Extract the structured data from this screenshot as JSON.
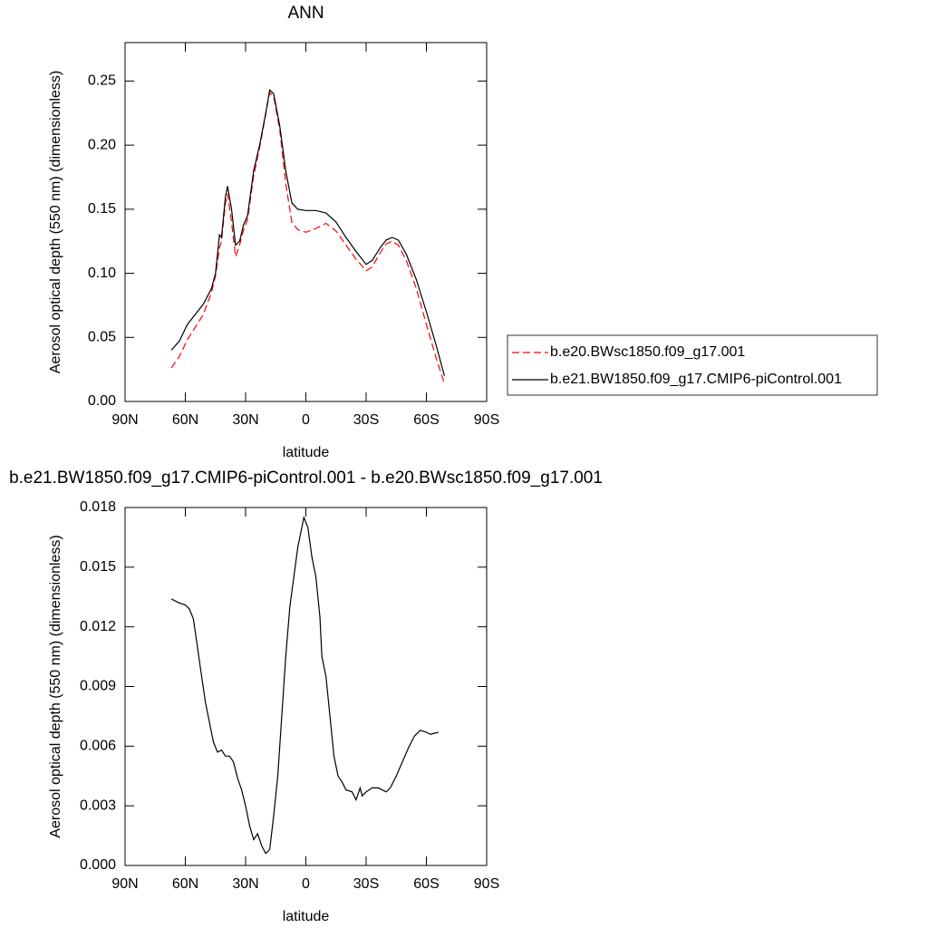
{
  "chart_data": [
    {
      "type": "line",
      "title": "ANN",
      "xlabel": "latitude",
      "ylabel": "Aerosol optical depth (550 nm) (dimensionless)",
      "xlim": [
        90,
        -90
      ],
      "xticks": [
        {
          "value": 90,
          "label": "90N"
        },
        {
          "value": 60,
          "label": "60N"
        },
        {
          "value": 30,
          "label": "30N"
        },
        0,
        {
          "value": -30,
          "label": "30S"
        },
        {
          "value": -60,
          "label": "60S"
        },
        {
          "value": -90,
          "label": "90S"
        }
      ],
      "ylim": [
        0,
        0.28
      ],
      "yticks": [
        {
          "value": 0,
          "label": "0.00"
        },
        0.05,
        {
          "value": 0.1,
          "label": "0.10"
        },
        0.15,
        {
          "value": 0.2,
          "label": "0.20"
        },
        0.25
      ],
      "legend": "outside-right",
      "x": [
        67,
        63,
        59,
        55,
        51,
        47,
        45,
        43,
        42,
        40,
        39,
        37,
        35,
        33,
        31,
        29,
        26,
        23,
        20,
        18,
        16,
        13,
        10,
        7,
        4,
        0,
        -5,
        -10,
        -15,
        -20,
        -25,
        -30,
        -33,
        -37,
        -40,
        -43,
        -46,
        -50,
        -55,
        -60,
        -65,
        -69
      ],
      "series": [
        {
          "name": "b.e20.BWsc1850.f09_g17.001",
          "color": "#ff0000",
          "dashed": true,
          "values": [
            0.026,
            0.035,
            0.048,
            0.058,
            0.068,
            0.085,
            0.098,
            0.12,
            0.125,
            0.155,
            0.162,
            0.14,
            0.113,
            0.122,
            0.134,
            0.142,
            0.176,
            0.198,
            0.224,
            0.241,
            0.238,
            0.212,
            0.17,
            0.14,
            0.134,
            0.132,
            0.135,
            0.139,
            0.133,
            0.122,
            0.111,
            0.102,
            0.105,
            0.116,
            0.123,
            0.125,
            0.122,
            0.11,
            0.088,
            0.06,
            0.033,
            0.014
          ]
        },
        {
          "name": "b.e21.BW1850.f09_g17.CMIP6-piControl.001",
          "color": "#000000",
          "dashed": false,
          "values": [
            0.04,
            0.047,
            0.06,
            0.068,
            0.076,
            0.088,
            0.1,
            0.13,
            0.128,
            0.16,
            0.168,
            0.15,
            0.122,
            0.125,
            0.138,
            0.145,
            0.18,
            0.2,
            0.225,
            0.243,
            0.24,
            0.215,
            0.18,
            0.155,
            0.15,
            0.149,
            0.149,
            0.147,
            0.14,
            0.128,
            0.117,
            0.107,
            0.11,
            0.12,
            0.126,
            0.128,
            0.126,
            0.115,
            0.095,
            0.07,
            0.043,
            0.02
          ]
        }
      ]
    },
    {
      "type": "line",
      "title": "b.e21.BW1850.f09_g17.CMIP6-piControl.001 - b.e20.BWsc1850.f09_g17.001",
      "xlabel": "latitude",
      "ylabel": "Aerosol optical depth (550 nm) (dimensionless)",
      "xlim": [
        90,
        -90
      ],
      "xticks": [
        {
          "value": 90,
          "label": "90N"
        },
        {
          "value": 60,
          "label": "60N"
        },
        {
          "value": 30,
          "label": "30N"
        },
        0,
        {
          "value": -30,
          "label": "30S"
        },
        {
          "value": -60,
          "label": "60S"
        },
        {
          "value": -90,
          "label": "90S"
        }
      ],
      "ylim": [
        0,
        0.018
      ],
      "yticks": [
        {
          "value": 0,
          "label": "0.000"
        },
        0.003,
        0.006,
        0.009,
        {
          "value": 0.012,
          "label": "0.012"
        },
        0.015,
        0.018
      ],
      "x": [
        67,
        63,
        60,
        58,
        56,
        54,
        52,
        50,
        48,
        46,
        44,
        42,
        40,
        38,
        36,
        34,
        32,
        30,
        28,
        26,
        24,
        22,
        20,
        18,
        16,
        14,
        12,
        10,
        8,
        6,
        4,
        2,
        1,
        -1,
        -3,
        -5,
        -7,
        -8,
        -10,
        -12,
        -14,
        -16,
        -18,
        -20,
        -23,
        -25,
        -27,
        -28,
        -30,
        -33,
        -36,
        -40,
        -42,
        -45,
        -48,
        -51,
        -54,
        -57,
        -60,
        -62,
        -66
      ],
      "series": [
        {
          "color": "#000000",
          "dashed": false,
          "values": [
            0.0134,
            0.0132,
            0.0131,
            0.0129,
            0.0124,
            0.011,
            0.0096,
            0.0082,
            0.0072,
            0.0062,
            0.0057,
            0.0058,
            0.0055,
            0.0055,
            0.0052,
            0.0044,
            0.0038,
            0.003,
            0.002,
            0.0013,
            0.0016,
            0.001,
            0.0006,
            0.0008,
            0.0025,
            0.0045,
            0.0075,
            0.0105,
            0.013,
            0.0145,
            0.016,
            0.017,
            0.0175,
            0.017,
            0.0155,
            0.0145,
            0.0125,
            0.0105,
            0.0095,
            0.0075,
            0.0055,
            0.0045,
            0.0042,
            0.0038,
            0.0037,
            0.0033,
            0.0039,
            0.0035,
            0.0037,
            0.0039,
            0.0039,
            0.0037,
            0.0039,
            0.0045,
            0.0052,
            0.0059,
            0.0065,
            0.0068,
            0.0067,
            0.0066,
            0.0067
          ]
        }
      ]
    }
  ]
}
